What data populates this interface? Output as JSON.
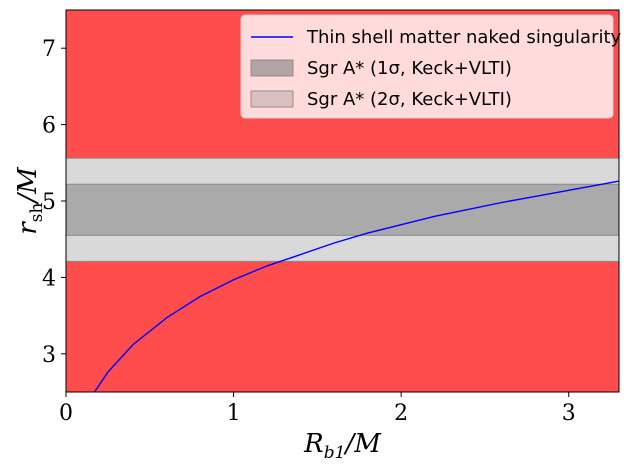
{
  "chart_data": {
    "type": "line",
    "x_range": [
      0,
      3.3
    ],
    "y_range": [
      2.5,
      7.5
    ],
    "x_ticks": [
      0,
      1,
      2,
      3
    ],
    "y_ticks": [
      3,
      4,
      5,
      6,
      7
    ],
    "x_tick_labels": [
      "0",
      "1",
      "2",
      "3"
    ],
    "y_tick_labels": [
      "3",
      "4",
      "5",
      "6",
      "7"
    ],
    "xlabel": "R_b1/M",
    "ylabel": "r_sh/M",
    "background_color": "#ff4d4d",
    "bands": [
      {
        "name": "Sgr A* (2σ, Keck+VLTI)",
        "y_range": [
          4.21,
          5.56
        ],
        "color": "#d9d9d9"
      },
      {
        "name": "Sgr A* (1σ, Keck+VLTI)",
        "y_range": [
          4.55,
          5.22
        ],
        "color": "#aaaaaa"
      }
    ],
    "series": [
      {
        "name": "Thin shell matter naked singularity",
        "color": "#0000ff",
        "x": [
          0.17,
          0.25,
          0.4,
          0.6,
          0.8,
          1.0,
          1.2,
          1.36,
          1.6,
          1.8,
          2.0,
          2.2,
          2.4,
          2.6,
          2.8,
          3.0,
          3.2,
          3.3
        ],
        "y": [
          2.5,
          2.76,
          3.12,
          3.47,
          3.75,
          3.97,
          4.15,
          4.27,
          4.45,
          4.58,
          4.69,
          4.8,
          4.89,
          4.98,
          5.06,
          5.14,
          5.22,
          5.26
        ]
      }
    ],
    "legend": {
      "position": "top-right",
      "entries": [
        {
          "label": "Thin shell matter naked singularity",
          "kind": "line",
          "color": "#0000ff"
        },
        {
          "label": "Sgr A* (1σ, Keck+VLTI)",
          "kind": "patch",
          "color": "#b0a4a4"
        },
        {
          "label": "Sgr A* (2σ, Keck+VLTI)",
          "kind": "patch",
          "color": "#d8c0c0"
        }
      ]
    }
  }
}
